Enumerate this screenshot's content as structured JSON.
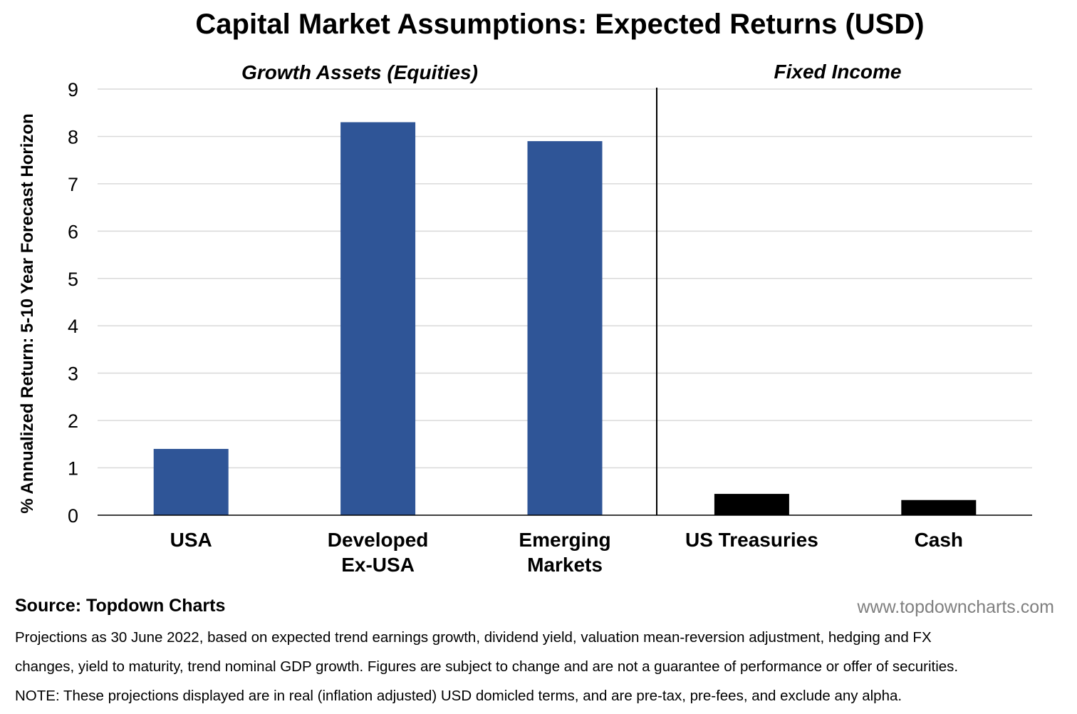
{
  "chart_data": {
    "type": "bar",
    "title": "Capital Market Assumptions: Expected Returns (USD)",
    "ylabel": "% Annualized Return: 5-10 Year Forecast Horizon",
    "xlabel": "",
    "ylim": [
      0,
      9
    ],
    "yticks": [
      "0",
      "1",
      "2",
      "3",
      "4",
      "5",
      "6",
      "7",
      "8",
      "9"
    ],
    "grid": true,
    "groups": [
      {
        "label": "Growth Assets (Equities)",
        "categories": [
          "USA",
          "Developed Ex-USA",
          "Emerging Markets"
        ]
      },
      {
        "label": "Fixed Income",
        "categories": [
          "US Treasuries",
          "Cash"
        ]
      }
    ],
    "categories": [
      {
        "lines": [
          "USA"
        ],
        "value": 1.4,
        "color": "#2f5597"
      },
      {
        "lines": [
          "Developed",
          "Ex-USA"
        ],
        "value": 8.3,
        "color": "#2f5597"
      },
      {
        "lines": [
          "Emerging",
          "Markets"
        ],
        "value": 7.9,
        "color": "#2f5597"
      },
      {
        "lines": [
          "US Treasuries"
        ],
        "value": 0.45,
        "color": "#000000"
      },
      {
        "lines": [
          "Cash"
        ],
        "value": 0.32,
        "color": "#000000"
      }
    ],
    "colors": {
      "equities": "#2f5597",
      "fixed_income": "#000000",
      "grid": "#d9d9d9"
    }
  },
  "footer": {
    "source": "Source: Topdown Charts",
    "website": "www.topdowncharts.com",
    "note_1": "Projections as 30 June 2022, based on expected trend earnings growth, dividend yield, valuation mean-reversion adjustment, hedging and FX",
    "note_2": "changes, yield to maturity, trend nominal GDP growth.  Figures are subject to change and are not a guarantee of performance or offer of securities.",
    "note_3": "NOTE: These projections displayed are in real (inflation adjusted) USD domicled terms, and are pre-tax, pre-fees, and exclude any alpha."
  }
}
